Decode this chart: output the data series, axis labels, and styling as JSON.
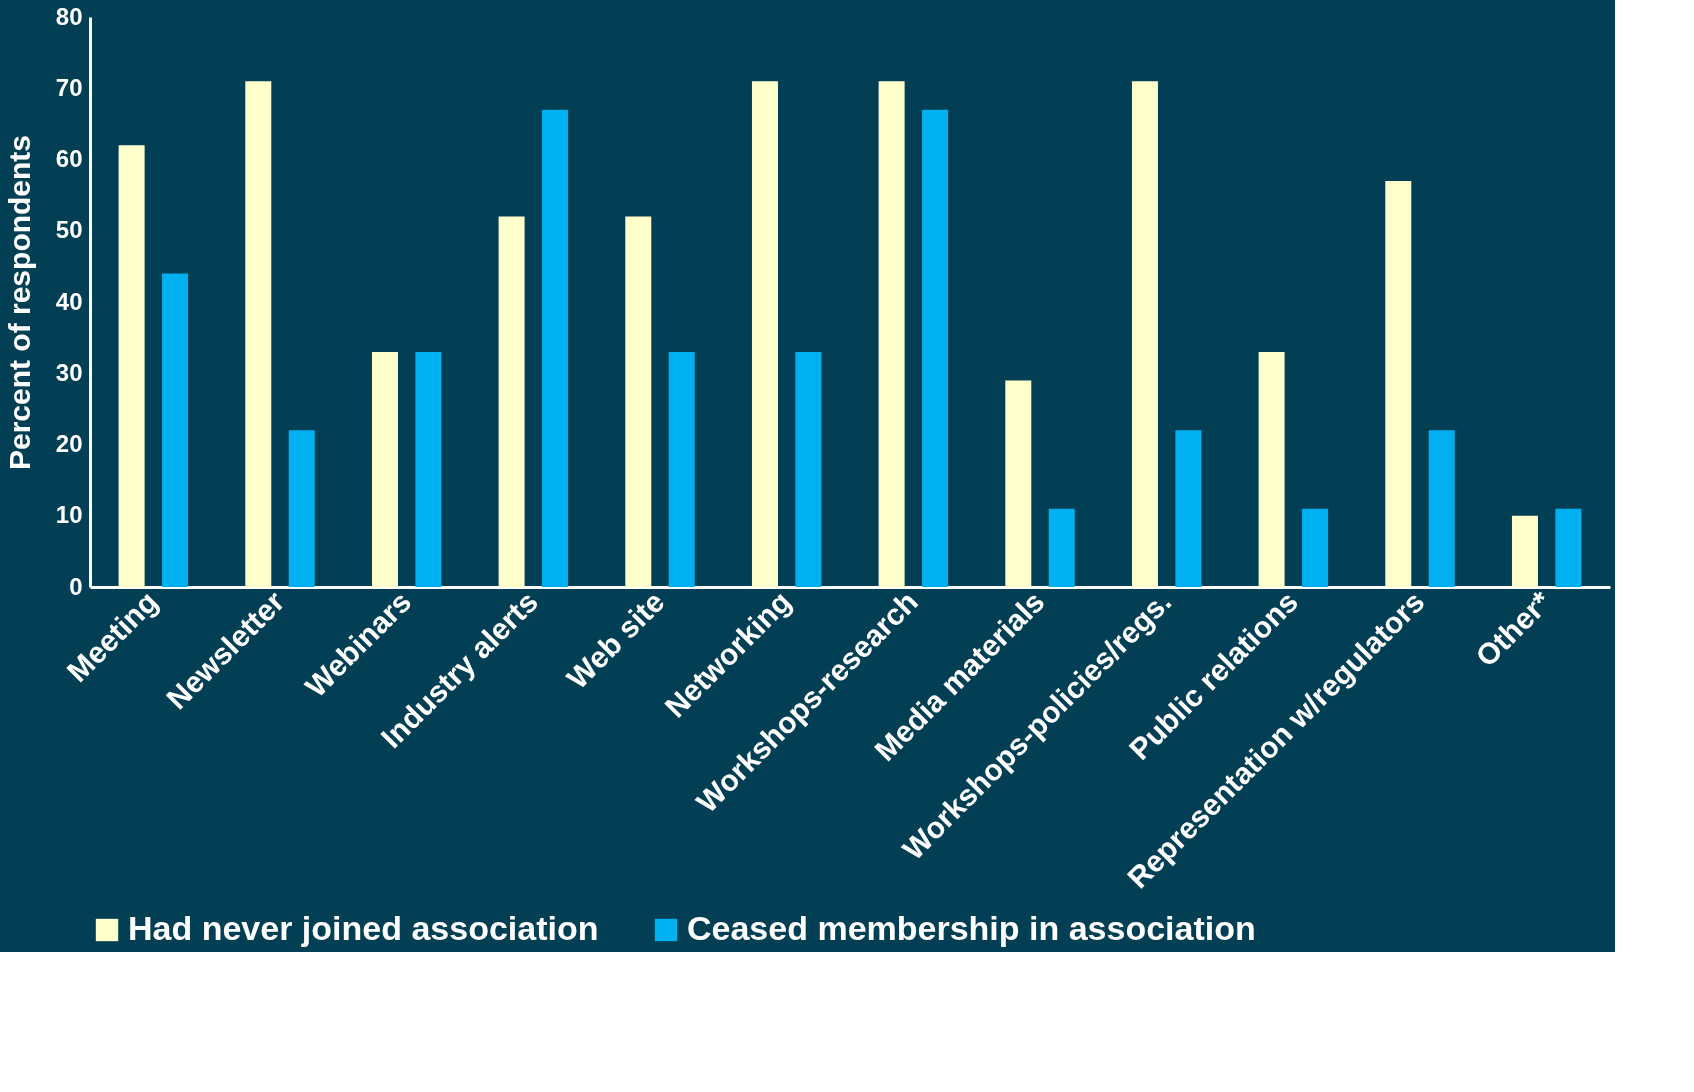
{
  "chart_data": {
    "type": "bar",
    "ylabel": "Percent of respondents",
    "categories": [
      "Meeting",
      "Newsletter",
      "Webinars",
      "Industry alerts",
      "Web site",
      "Networking",
      "Workshops-research",
      "Media materials",
      "Workshops-policies/regs.",
      "Public relations",
      "Representation w/regulators",
      "Other*"
    ],
    "series": [
      {
        "name": "Had never joined association",
        "color": "#ffffcc",
        "values": [
          62,
          71,
          33,
          52,
          52,
          71,
          71,
          29,
          71,
          33,
          57,
          10
        ]
      },
      {
        "name": "Ceased membership in association",
        "color": "#00b0f0",
        "values": [
          44,
          22,
          33,
          67,
          33,
          33,
          67,
          11,
          22,
          11,
          22,
          11
        ]
      }
    ],
    "ylim": [
      0,
      80
    ],
    "yticks": [
      0,
      10,
      20,
      30,
      40,
      50,
      60,
      70,
      80
    ],
    "grid": false,
    "legend": "bottom"
  }
}
